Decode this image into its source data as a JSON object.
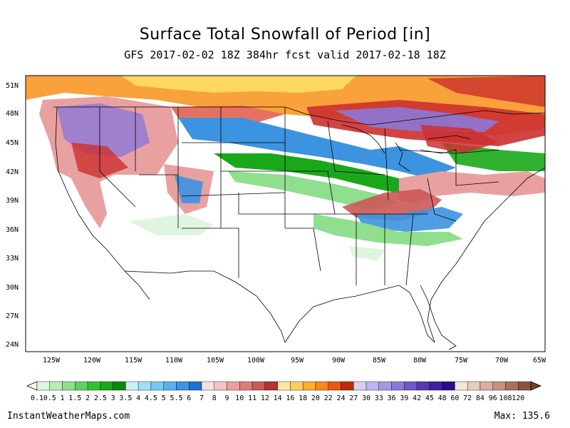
{
  "header": {
    "title": "Surface Total Snowfall of Period [in]",
    "subtitle": "GFS 2017-02-02 18Z 384hr fcst valid 2017-02-18 18Z"
  },
  "axes": {
    "lat_labels": [
      "51N",
      "48N",
      "45N",
      "42N",
      "39N",
      "36N",
      "33N",
      "30N",
      "27N",
      "24N"
    ],
    "lon_labels": [
      "125W",
      "120W",
      "115W",
      "110W",
      "105W",
      "100W",
      "95W",
      "90W",
      "85W",
      "80W",
      "75W",
      "70W",
      "65W"
    ]
  },
  "colorbar": {
    "labels": [
      "0.1",
      "0.5",
      "1",
      "1.5",
      "2",
      "2.5",
      "3",
      "3.5",
      "4",
      "4.5",
      "5",
      "5.5",
      "6",
      "7",
      "8",
      "9",
      "10",
      "11",
      "12",
      "14",
      "16",
      "18",
      "20",
      "22",
      "24",
      "27",
      "30",
      "33",
      "36",
      "39",
      "42",
      "45",
      "48",
      "60",
      "72",
      "84",
      "96",
      "108",
      "120"
    ],
    "colors": [
      "#dff5df",
      "#b8ecb8",
      "#8fdf8f",
      "#5fd05f",
      "#38bf38",
      "#1aa81a",
      "#0a8a0a",
      "#c8f0f8",
      "#a0e0f4",
      "#78c8f0",
      "#58b0ec",
      "#3c94e0",
      "#2070d0",
      "#f8e0e0",
      "#f4c4c4",
      "#e8a0a0",
      "#dc7c7c",
      "#cc5858",
      "#b83030",
      "#fce8a0",
      "#fcd060",
      "#fcb030",
      "#f88818",
      "#e85810",
      "#c02808",
      "#d8d0f4",
      "#c0b4ee",
      "#a898e4",
      "#8c78d8",
      "#7058c8",
      "#5838b4",
      "#4020a0",
      "#2c0c88",
      "#f4e4dc",
      "#e8ccc0",
      "#d8b0a0",
      "#c49080",
      "#a87060",
      "#8c5040"
    ]
  },
  "map": {
    "legend_snow_colors": {
      "light_green": "#8fdf8f",
      "green": "#1aa81a",
      "blue": "#3c94e0",
      "pink": "#e8a0a0",
      "red": "#cc3030",
      "orange": "#f89018",
      "yellow": "#fcd860",
      "purple": "#8c78d8"
    }
  },
  "footer": {
    "source": "InstantWeatherMaps.com",
    "max_label": "Max: 135.6"
  }
}
